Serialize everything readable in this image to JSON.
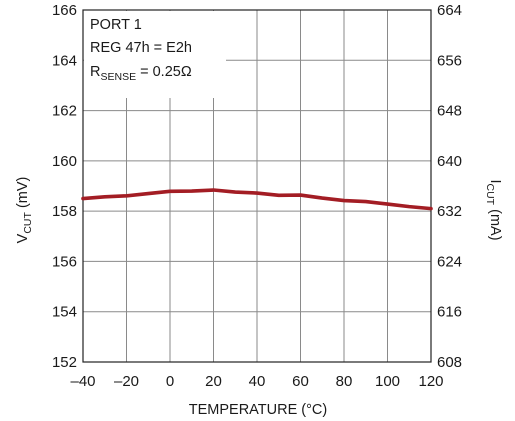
{
  "chart_data": {
    "type": "line",
    "xlabel": "TEMPERATURE (°C)",
    "ylabel_left": {
      "main": "V",
      "sub": "CUT",
      "unit": " (mV)"
    },
    "ylabel_right": {
      "main": "I",
      "sub": "CUT",
      "unit": " (mA)"
    },
    "xlim": [
      -40,
      120
    ],
    "ylim_left": [
      152,
      166
    ],
    "ylim_right": [
      608,
      664
    ],
    "x_ticks": [
      "–40",
      "–20",
      "0",
      "20",
      "40",
      "60",
      "80",
      "100",
      "120"
    ],
    "y_ticks_left": [
      "152",
      "154",
      "156",
      "158",
      "160",
      "162",
      "164",
      "166"
    ],
    "y_ticks_right": [
      "608",
      "616",
      "624",
      "632",
      "640",
      "648",
      "656",
      "664"
    ],
    "annotation": {
      "line1": "PORT 1",
      "line2": "REG 47h = E2h",
      "line3_main": "R",
      "line3_sub": "SENSE",
      "line3_rest": " = 0.25Ω"
    },
    "grid": true,
    "series": [
      {
        "color": "#a31d24",
        "x": [
          -40,
          -30,
          -20,
          -10,
          0,
          10,
          20,
          30,
          40,
          50,
          60,
          70,
          80,
          90,
          100,
          110,
          120
        ],
        "y": [
          158.5,
          158.57,
          158.61,
          158.7,
          158.79,
          158.8,
          158.84,
          158.76,
          158.72,
          158.63,
          158.64,
          158.52,
          158.42,
          158.38,
          158.28,
          158.18,
          158.1
        ]
      }
    ]
  }
}
